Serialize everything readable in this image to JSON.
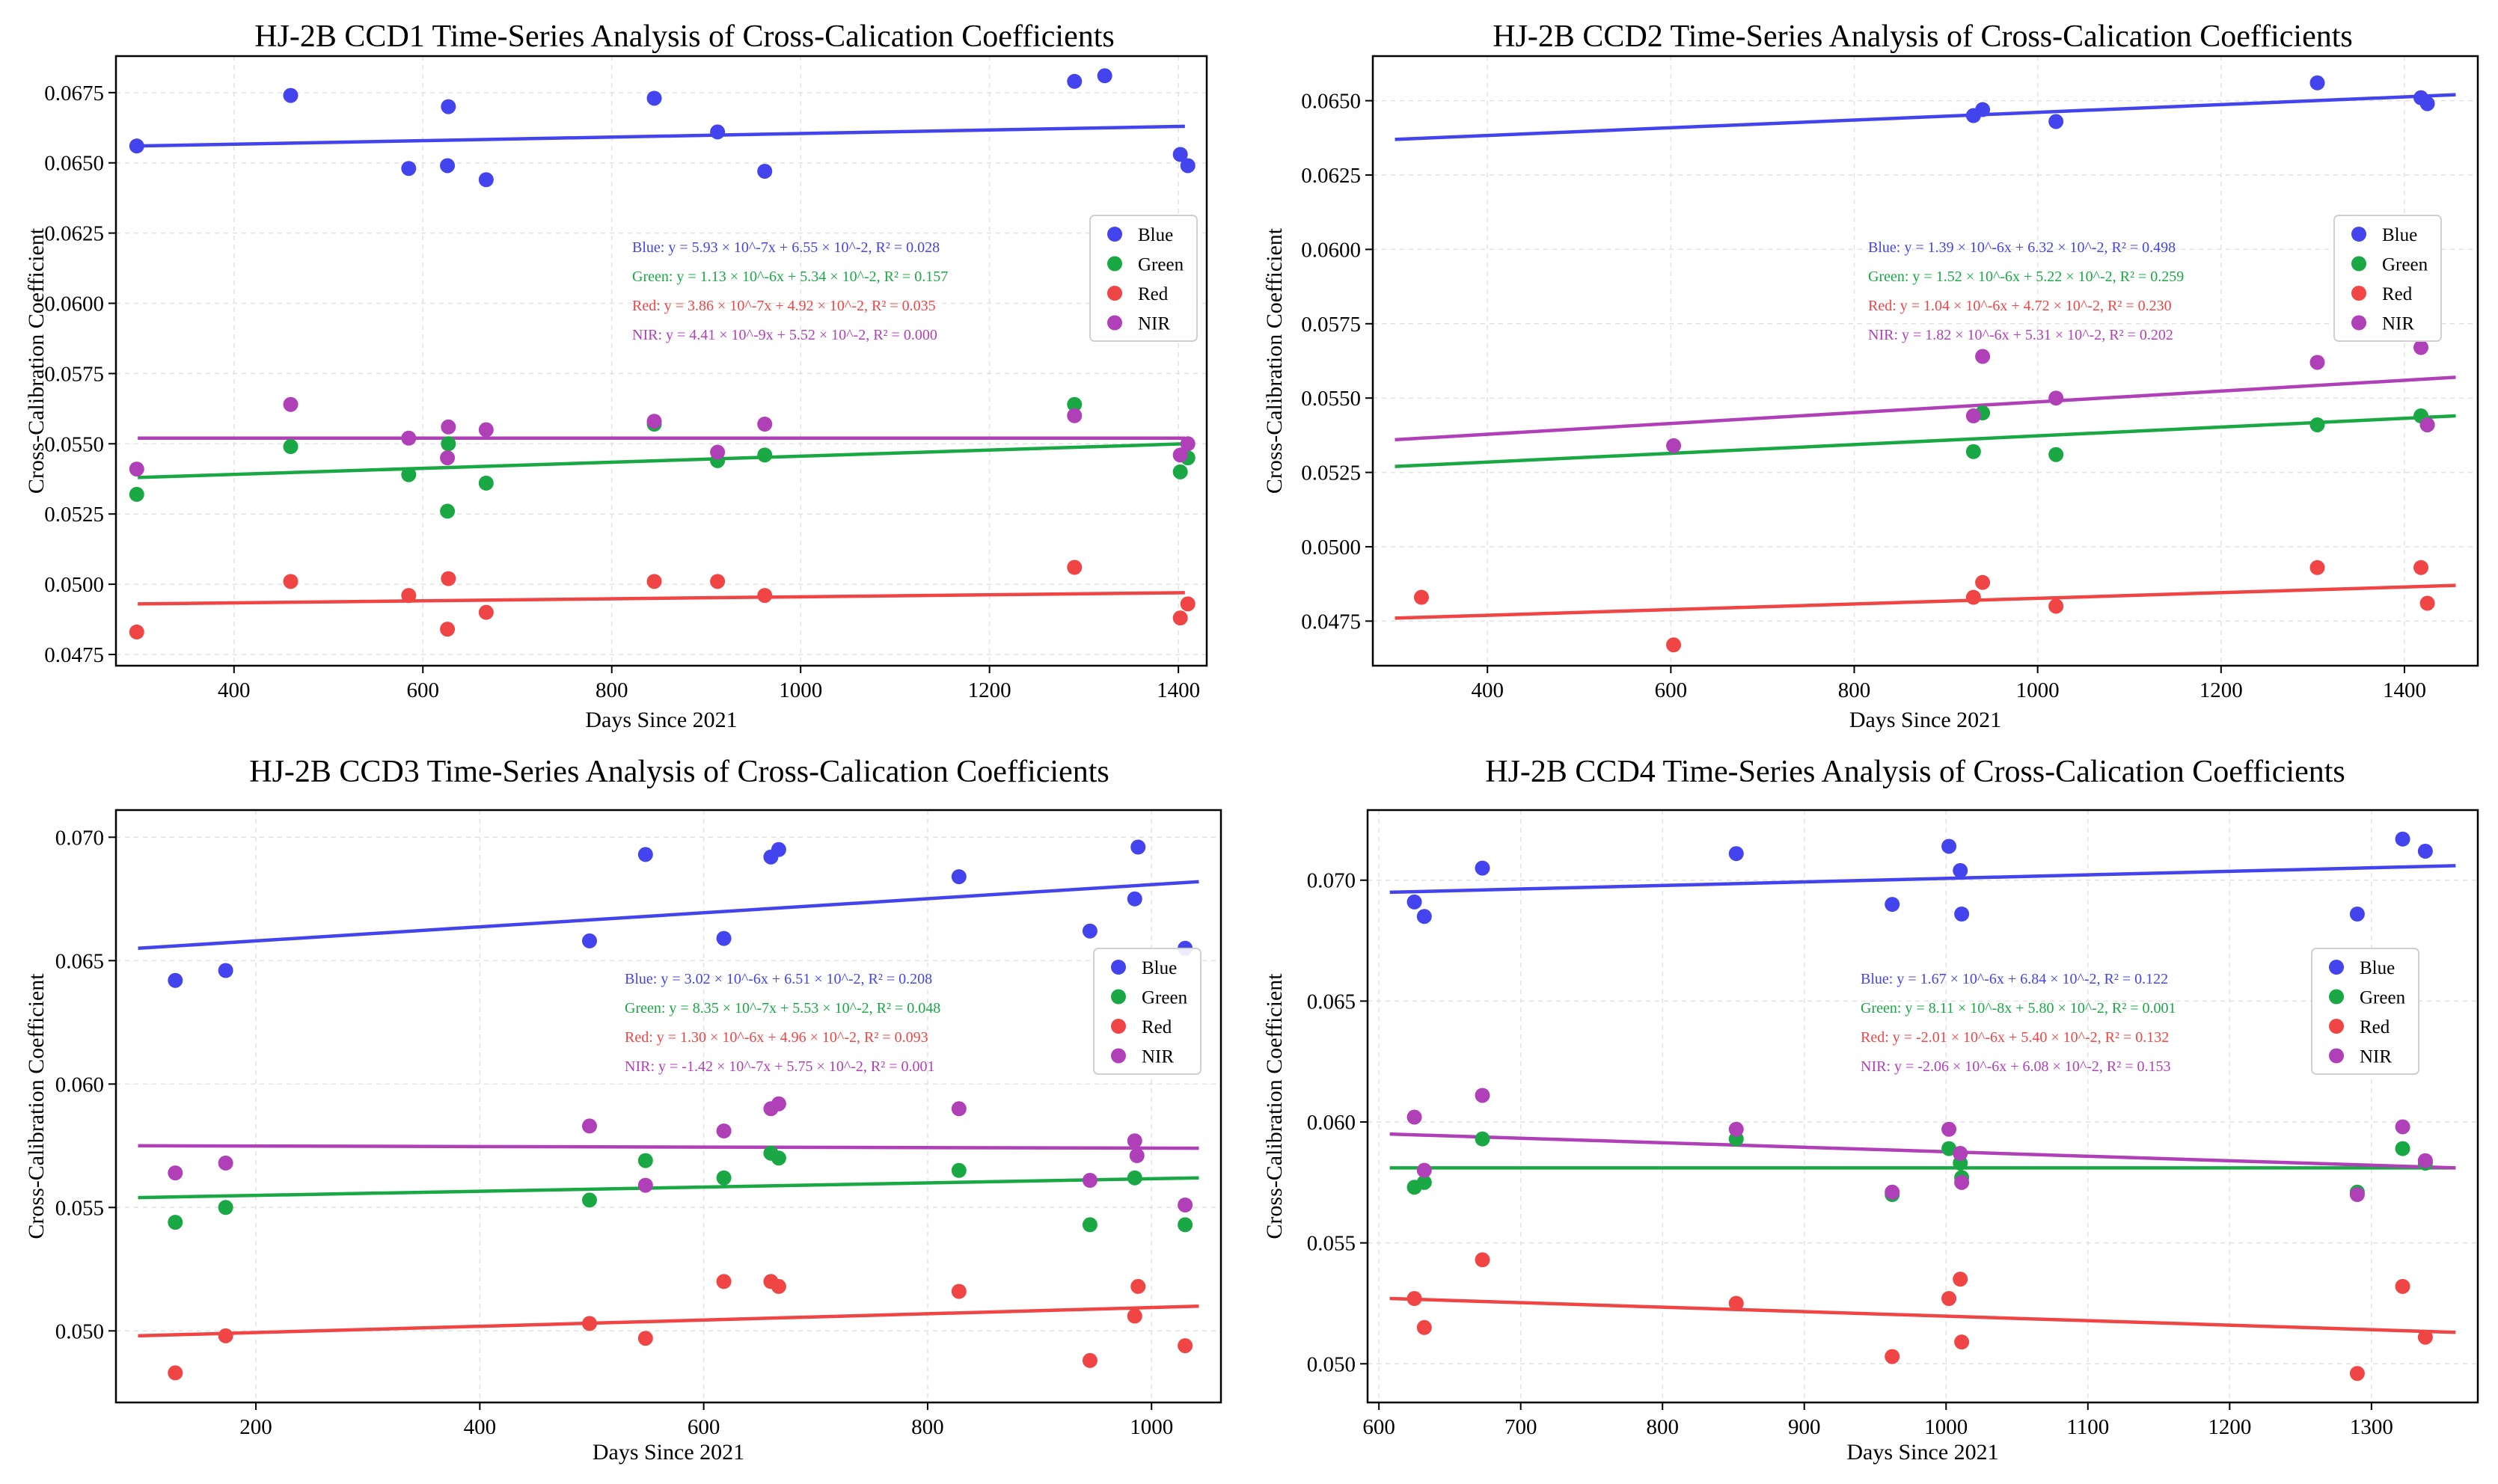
{
  "colors": {
    "Blue": "#4444ee",
    "Green": "#1aa845",
    "Red": "#f04545",
    "NIR": "#b040b8"
  },
  "chart_data": [
    {
      "type": "scatter",
      "title": "HJ-2B CCD1 Time-Series Analysis of Cross-Calication Coefficients",
      "xlabel": "Days Since 2021",
      "ylabel": "Cross-Calibration Coefficient",
      "xlim": [
        275,
        1430
      ],
      "ylim": [
        0.0471,
        0.0688
      ],
      "xticks": [
        400,
        600,
        800,
        1000,
        1200,
        1400
      ],
      "yticks": [
        0.0475,
        0.05,
        0.0525,
        0.055,
        0.0575,
        0.06,
        0.0625,
        0.065,
        0.0675
      ],
      "ytick_labels": [
        "0.0475",
        "0.0500",
        "0.0525",
        "0.0550",
        "0.0575",
        "0.0600",
        "0.0625",
        "0.0650",
        "0.0675"
      ],
      "legend": [
        "Blue",
        "Green",
        "Red",
        "NIR"
      ],
      "series": [
        {
          "name": "Blue",
          "x": [
            297,
            460,
            585,
            626,
            627,
            667,
            845,
            912,
            962,
            1290,
            1322,
            1402,
            1410
          ],
          "y": [
            0.0656,
            0.0674,
            0.0648,
            0.0649,
            0.067,
            0.0644,
            0.0673,
            0.0661,
            0.0647,
            0.0679,
            0.0681,
            0.0653,
            0.0649
          ],
          "fit": [
            0.0656,
            0.0663
          ],
          "equation": "Blue: y = 5.93 × 10^-7x + 6.55 × 10^-2, R² = 0.028"
        },
        {
          "name": "Green",
          "x": [
            297,
            460,
            585,
            626,
            627,
            667,
            845,
            912,
            962,
            1290,
            1402,
            1410
          ],
          "y": [
            0.0532,
            0.0549,
            0.0539,
            0.0526,
            0.055,
            0.0536,
            0.0557,
            0.0544,
            0.0546,
            0.0564,
            0.054,
            0.0545
          ],
          "fit": [
            0.0538,
            0.055
          ],
          "equation": "Green: y = 1.13 × 10^-6x + 5.34 × 10^-2, R² = 0.157"
        },
        {
          "name": "Red",
          "x": [
            297,
            460,
            585,
            626,
            627,
            667,
            845,
            912,
            962,
            1290,
            1402,
            1410
          ],
          "y": [
            0.0483,
            0.0501,
            0.0496,
            0.0484,
            0.0502,
            0.049,
            0.0501,
            0.0501,
            0.0496,
            0.0506,
            0.0488,
            0.0493
          ],
          "fit": [
            0.0493,
            0.0497
          ],
          "equation": "Red: y = 3.86 × 10^-7x + 4.92 × 10^-2, R² = 0.035"
        },
        {
          "name": "NIR",
          "x": [
            297,
            460,
            585,
            626,
            627,
            667,
            845,
            912,
            962,
            1290,
            1402,
            1410
          ],
          "y": [
            0.0541,
            0.0564,
            0.0552,
            0.0545,
            0.0556,
            0.0555,
            0.0558,
            0.0547,
            0.0557,
            0.056,
            0.0546,
            0.055
          ],
          "fit": [
            0.0552,
            0.0552
          ],
          "equation": "NIR: y = 4.41 × 10^-9x + 5.52 × 10^-2, R² = 0.000"
        }
      ]
    },
    {
      "type": "scatter",
      "title": "HJ-2B CCD2 Time-Series Analysis of Cross-Calication Coefficients",
      "xlabel": "Days Since 2021",
      "ylabel": "Cross-Calibration Coefficient",
      "xlim": [
        275,
        1480
      ],
      "ylim": [
        0.046,
        0.0665
      ],
      "xticks": [
        400,
        600,
        800,
        1000,
        1200,
        1400
      ],
      "yticks": [
        0.0475,
        0.05,
        0.0525,
        0.055,
        0.0575,
        0.06,
        0.0625,
        0.065
      ],
      "ytick_labels": [
        "0.0475",
        "0.0500",
        "0.0525",
        "0.0550",
        "0.0575",
        "0.0600",
        "0.0625",
        "0.0650"
      ],
      "legend": [
        "Blue",
        "Green",
        "Red",
        "NIR"
      ],
      "series": [
        {
          "name": "Blue",
          "x": [
            930,
            940,
            1020,
            1305,
            1418,
            1425
          ],
          "y": [
            0.0645,
            0.0647,
            0.0643,
            0.0656,
            0.0651,
            0.0649
          ],
          "fit": [
            0.0637,
            0.0652
          ],
          "equation": "Blue: y = 1.39 × 10^-6x + 6.32 × 10^-2, R² = 0.498"
        },
        {
          "name": "Green",
          "x": [
            930,
            940,
            1020,
            1305,
            1418,
            1425
          ],
          "y": [
            0.0532,
            0.0545,
            0.0531,
            0.0541,
            0.0544,
            0.0541
          ],
          "fit": [
            0.0527,
            0.0544
          ],
          "equation": "Green: y = 1.52 × 10^-6x + 5.22 × 10^-2, R² = 0.259"
        },
        {
          "name": "Red",
          "x": [
            328,
            603,
            930,
            940,
            1020,
            1305,
            1418,
            1425
          ],
          "y": [
            0.0483,
            0.0467,
            0.0483,
            0.0488,
            0.048,
            0.0493,
            0.0493,
            0.0481
          ],
          "fit": [
            0.0476,
            0.0487
          ],
          "equation": "Red: y = 1.04 × 10^-6x + 4.72 × 10^-2, R² = 0.230"
        },
        {
          "name": "NIR",
          "x": [
            603,
            930,
            940,
            1020,
            1305,
            1418,
            1425
          ],
          "y": [
            0.0534,
            0.0544,
            0.0564,
            0.055,
            0.0562,
            0.0567,
            0.0541
          ],
          "fit": [
            0.0536,
            0.0557
          ],
          "equation": "NIR: y = 1.82 × 10^-6x + 5.31 × 10^-2, R² = 0.202"
        }
      ]
    },
    {
      "type": "scatter",
      "title": "HJ-2B CCD3 Time-Series Analysis of Cross-Calication Coefficients",
      "xlabel": "Days Since 2021",
      "ylabel": "Cross-Calibration Coefficient",
      "xlim": [
        75,
        1062
      ],
      "ylim": [
        0.0471,
        0.0711
      ],
      "xticks": [
        200,
        400,
        600,
        800,
        1000
      ],
      "yticks": [
        0.05,
        0.055,
        0.06,
        0.065,
        0.07
      ],
      "ytick_labels": [
        "0.050",
        "0.055",
        "0.060",
        "0.065",
        "0.070"
      ],
      "legend": [
        "Blue",
        "Green",
        "Red",
        "NIR"
      ],
      "series": [
        {
          "name": "Blue",
          "x": [
            128,
            173,
            498,
            548,
            618,
            660,
            667,
            828,
            945,
            985,
            988,
            1030
          ],
          "y": [
            0.0642,
            0.0646,
            0.0658,
            0.0693,
            0.0659,
            0.0692,
            0.0695,
            0.0684,
            0.0662,
            0.0675,
            0.0696,
            0.0655
          ],
          "fit": [
            0.0655,
            0.0682
          ],
          "equation": "Blue: y = 3.02 × 10^-6x + 6.51 × 10^-2, R² = 0.208"
        },
        {
          "name": "Green",
          "x": [
            128,
            173,
            498,
            548,
            618,
            660,
            667,
            828,
            945,
            985,
            1030
          ],
          "y": [
            0.0544,
            0.055,
            0.0553,
            0.0569,
            0.0562,
            0.0572,
            0.057,
            0.0565,
            0.0543,
            0.0562,
            0.0543
          ],
          "fit": [
            0.0554,
            0.0562
          ],
          "equation": "Green: y = 8.35 × 10^-7x + 5.53 × 10^-2, R² = 0.048"
        },
        {
          "name": "Red",
          "x": [
            128,
            173,
            498,
            548,
            618,
            660,
            667,
            828,
            945,
            985,
            988,
            1030
          ],
          "y": [
            0.0483,
            0.0498,
            0.0503,
            0.0497,
            0.052,
            0.052,
            0.0518,
            0.0516,
            0.0488,
            0.0506,
            0.0518,
            0.0494
          ],
          "fit": [
            0.0498,
            0.051
          ],
          "equation": "Red: y = 1.30 × 10^-6x + 4.96 × 10^-2, R² = 0.093"
        },
        {
          "name": "NIR",
          "x": [
            128,
            173,
            498,
            548,
            618,
            660,
            667,
            828,
            945,
            985,
            987,
            1030
          ],
          "y": [
            0.0564,
            0.0568,
            0.0583,
            0.0559,
            0.0581,
            0.059,
            0.0592,
            0.059,
            0.0561,
            0.0577,
            0.0571,
            0.0551
          ],
          "fit": [
            0.0575,
            0.0574
          ],
          "equation": "NIR: y = -1.42 × 10^-7x + 5.75 × 10^-2, R² = 0.001"
        }
      ]
    },
    {
      "type": "scatter",
      "title": "HJ-2B CCD4 Time-Series Analysis of Cross-Calication Coefficients",
      "xlabel": "Days Since 2021",
      "ylabel": "Cross-Calibration Coefficient",
      "xlim": [
        592,
        1375
      ],
      "ylim": [
        0.0484,
        0.0729
      ],
      "xticks": [
        600,
        700,
        800,
        900,
        1000,
        1100,
        1200,
        1300
      ],
      "yticks": [
        0.05,
        0.055,
        0.06,
        0.065,
        0.07
      ],
      "ytick_labels": [
        "0.050",
        "0.055",
        "0.060",
        "0.065",
        "0.070"
      ],
      "legend": [
        "Blue",
        "Green",
        "Red",
        "NIR"
      ],
      "series": [
        {
          "name": "Blue",
          "x": [
            625,
            632,
            673,
            852,
            962,
            1002,
            1010,
            1011,
            1290,
            1322,
            1338
          ],
          "y": [
            0.0691,
            0.0685,
            0.0705,
            0.0711,
            0.069,
            0.0714,
            0.0704,
            0.0686,
            0.0686,
            0.0717,
            0.0712
          ],
          "fit": [
            0.0695,
            0.0706
          ],
          "equation": "Blue: y = 1.67 × 10^-6x + 6.84 × 10^-2, R² = 0.122"
        },
        {
          "name": "Green",
          "x": [
            625,
            632,
            673,
            852,
            962,
            1002,
            1010,
            1011,
            1290,
            1322,
            1338
          ],
          "y": [
            0.0573,
            0.0575,
            0.0593,
            0.0593,
            0.057,
            0.0589,
            0.0583,
            0.0577,
            0.0571,
            0.0589,
            0.0583
          ],
          "fit": [
            0.0581,
            0.0581
          ],
          "equation": "Green: y = 8.11 × 10^-8x + 5.80 × 10^-2, R² = 0.001"
        },
        {
          "name": "Red",
          "x": [
            625,
            632,
            673,
            852,
            962,
            1002,
            1010,
            1011,
            1290,
            1322,
            1338
          ],
          "y": [
            0.0527,
            0.0515,
            0.0543,
            0.0525,
            0.0503,
            0.0527,
            0.0535,
            0.0509,
            0.0496,
            0.0532,
            0.0511
          ],
          "fit": [
            0.0527,
            0.0513
          ],
          "equation": "Red: y = -2.01 × 10^-6x + 5.40 × 10^-2, R² = 0.132"
        },
        {
          "name": "NIR",
          "x": [
            625,
            632,
            673,
            852,
            962,
            1002,
            1010,
            1011,
            1290,
            1322,
            1338
          ],
          "y": [
            0.0602,
            0.058,
            0.0611,
            0.0597,
            0.0571,
            0.0597,
            0.0587,
            0.0575,
            0.057,
            0.0598,
            0.0584
          ],
          "fit": [
            0.0595,
            0.0581
          ],
          "equation": "NIR: y = -2.06 × 10^-6x + 6.08 × 10^-2, R² = 0.153"
        }
      ]
    }
  ]
}
